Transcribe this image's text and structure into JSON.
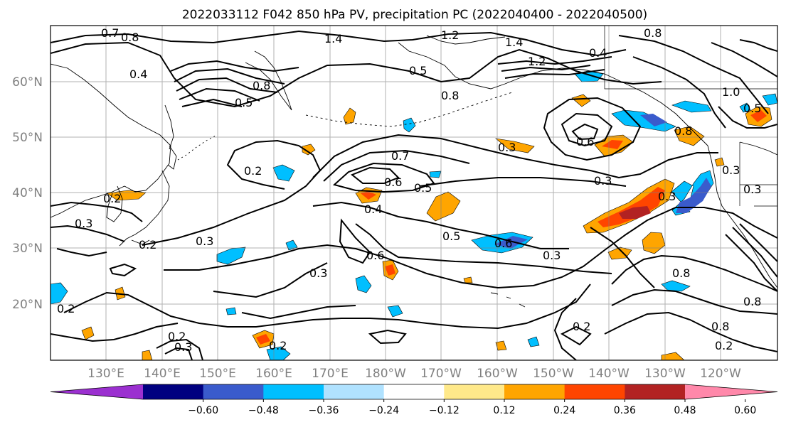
{
  "title": "2022033112 F042 850 hPa PV, precipitation PC (2022040400 - 2022040500)",
  "map": {
    "lat_ticks": [
      "60°N",
      "50°N",
      "40°N",
      "30°N",
      "20°N"
    ],
    "lon_ticks": [
      "130°E",
      "140°E",
      "150°E",
      "160°E",
      "170°E",
      "180°W",
      "170°W",
      "160°W",
      "150°W",
      "140°W",
      "130°W",
      "120°W"
    ],
    "contour_labels": [
      "0.7",
      "0.8",
      "0.4",
      "1.4",
      "1.2",
      "1.4",
      "0.8",
      "0.5",
      "1.2",
      "0.4",
      "0.8",
      "0.5",
      "1.0",
      "0.8",
      "0.8",
      "0.5",
      "0.2",
      "0.7",
      "0.6",
      "0.5",
      "0.3",
      "0.6",
      "0.2",
      "0.3",
      "0.4",
      "0.3",
      "0.3",
      "0.2",
      "0.3",
      "0.2",
      "0.3",
      "0.5",
      "0.6",
      "0.3",
      "0.6",
      "0.3",
      "0.8",
      "0.8",
      "0.2",
      "0.2",
      "0.3",
      "0.2",
      "0.2",
      "0.8",
      "0.3"
    ]
  },
  "colorbar": {
    "ticks": [
      "−0.60",
      "−0.48",
      "−0.36",
      "−0.24",
      "−0.12",
      "0.12",
      "0.24",
      "0.36",
      "0.48",
      "0.60"
    ],
    "colors": [
      "#9b30d0",
      "#000080",
      "#3a5bcc",
      "#00bfff",
      "#b0e2ff",
      "#ffffff",
      "#ffe98a",
      "#ffa500",
      "#ff4500",
      "#b22222",
      "#ff88aa"
    ]
  },
  "colors": {
    "contour": "#000000",
    "coast": "#000000",
    "grid": "#808080"
  }
}
